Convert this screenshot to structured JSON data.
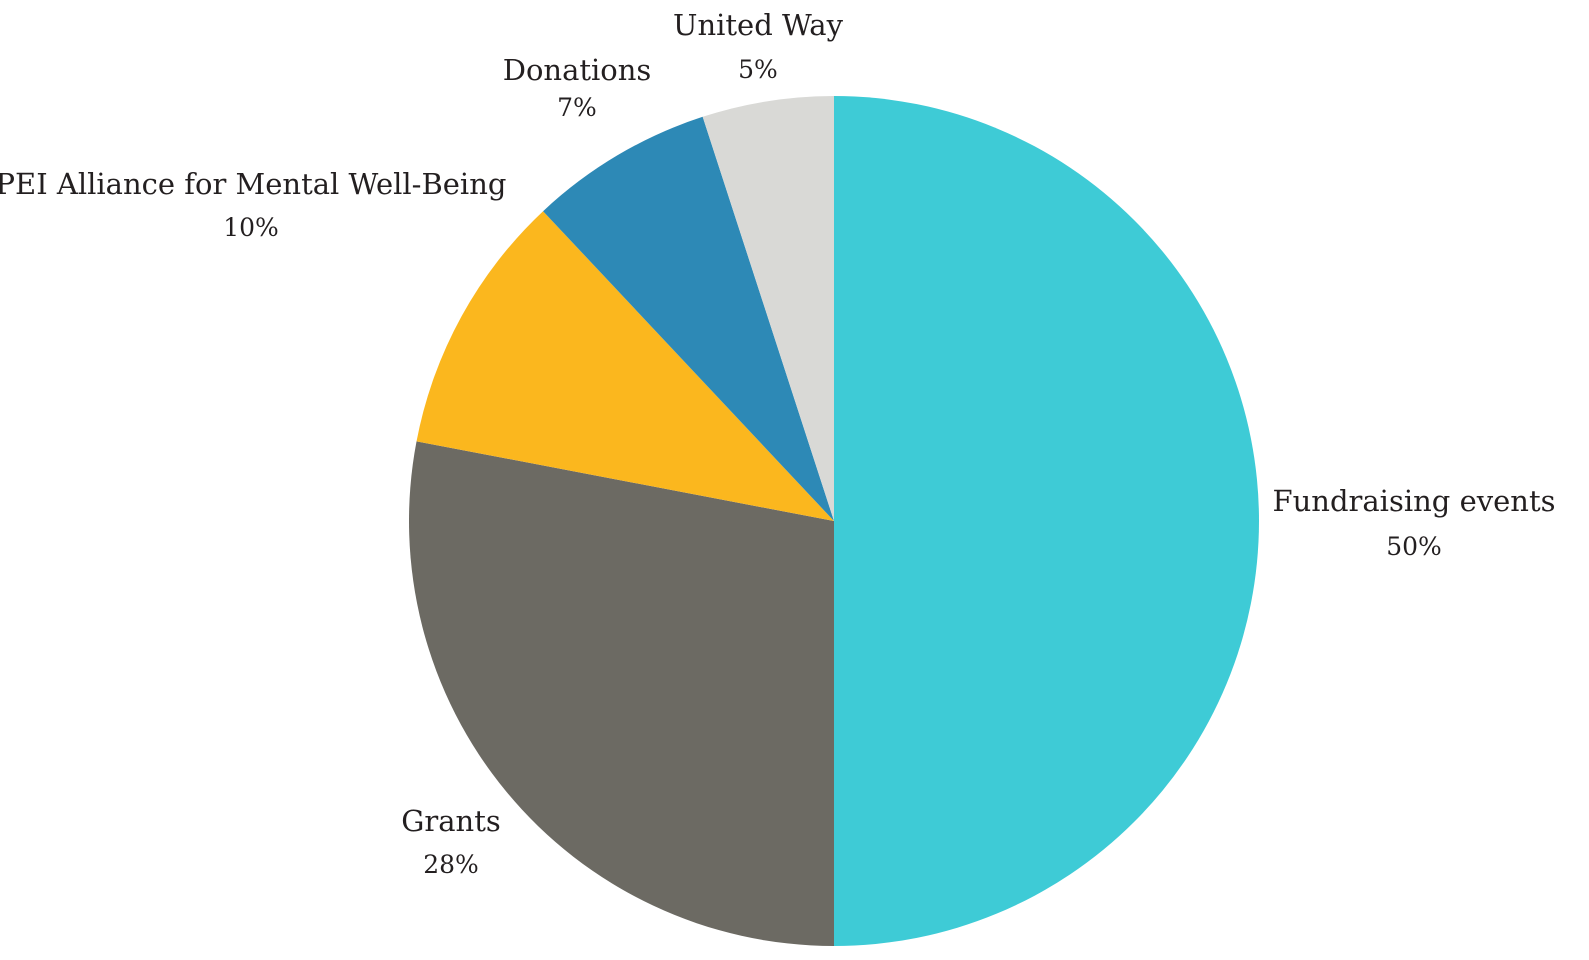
{
  "chart_data": {
    "type": "pie",
    "start": "12 o'clock",
    "direction": "clockwise",
    "slices": [
      {
        "label": "Fundraising events",
        "value": 50,
        "value_label": "50%",
        "color": "#3ecbd6"
      },
      {
        "label": "Grants",
        "value": 28,
        "value_label": "28%",
        "color": "#6c6a63"
      },
      {
        "label": "PEI Alliance for Mental Well-Being",
        "value": 10,
        "value_label": "10%",
        "color": "#fbb71e"
      },
      {
        "label": "Donations",
        "value": 7,
        "value_label": "7%",
        "color": "#2d89b6"
      },
      {
        "label": "United Way",
        "value": 5,
        "value_label": "5%",
        "color": "#d9d9d6"
      }
    ]
  }
}
